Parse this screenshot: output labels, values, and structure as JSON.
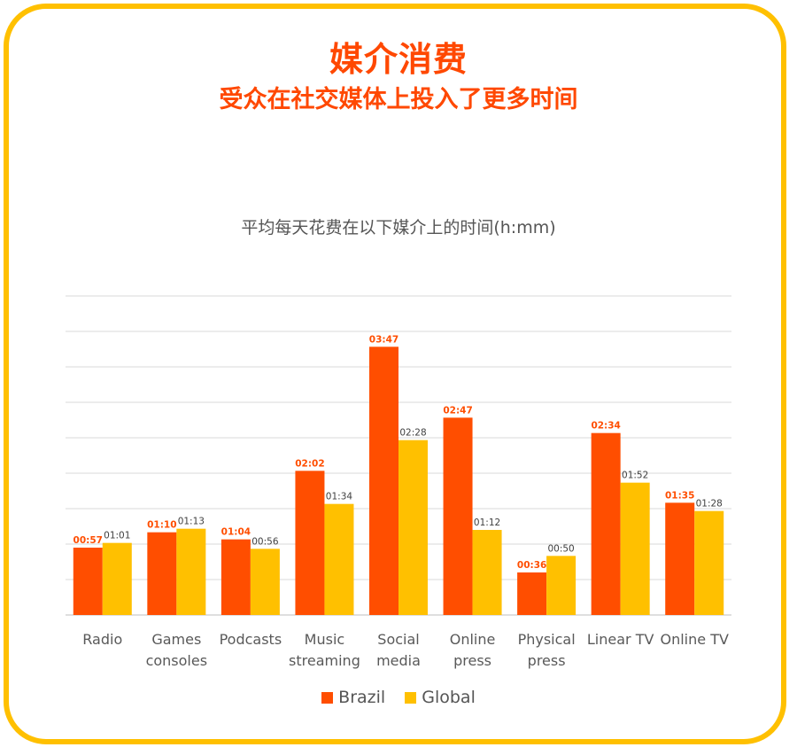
{
  "header": {
    "title": "媒介消费",
    "subtitle": "受众在社交媒体上投入了更多时间"
  },
  "colors": {
    "brazil": "#ff4e00",
    "global": "#ffc000",
    "border": "#ffc000",
    "brazil_label": "#ff4e00",
    "global_label": "#404040"
  },
  "chart_data": {
    "type": "bar",
    "title": "平均每天花费在以下媒介上的时间(h:mm)",
    "categories": [
      [
        "Radio"
      ],
      [
        "Games",
        "consoles"
      ],
      [
        "Podcasts"
      ],
      [
        "Music",
        "streaming"
      ],
      [
        "Social",
        "media"
      ],
      [
        "Online",
        "press"
      ],
      [
        "Physical",
        "press"
      ],
      [
        "Linear TV"
      ],
      [
        "Online TV"
      ]
    ],
    "series": [
      {
        "name": "Brazil",
        "values": [
          57,
          70,
          64,
          122,
          227,
          167,
          36,
          154,
          95
        ],
        "labels": [
          "00:57",
          "01:10",
          "01:04",
          "02:02",
          "03:47",
          "02:47",
          "00:36",
          "02:34",
          "01:35"
        ]
      },
      {
        "name": "Global",
        "values": [
          61,
          73,
          56,
          94,
          148,
          72,
          50,
          112,
          88
        ],
        "labels": [
          "01:01",
          "01:13",
          "00:56",
          "01:34",
          "02:28",
          "01:12",
          "00:50",
          "01:52",
          "01:28"
        ]
      }
    ],
    "ylim": [
      0,
      270
    ],
    "grid": true,
    "legend": "bottom"
  }
}
